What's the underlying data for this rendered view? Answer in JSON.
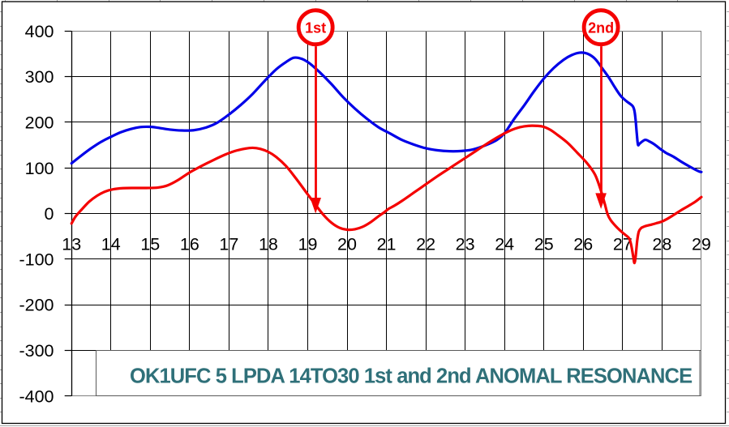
{
  "chart_data": {
    "type": "line",
    "title": "OK1UFC 5 LPDA 14TO30 1st and 2nd ANOMAL RESONANCE",
    "title_color": "#2f7079",
    "xlabel": "",
    "ylabel": "",
    "xlim": [
      13,
      29
    ],
    "ylim": [
      -400,
      400
    ],
    "xticks": [
      13,
      14,
      15,
      16,
      17,
      18,
      19,
      20,
      21,
      22,
      23,
      24,
      25,
      26,
      27,
      28,
      29
    ],
    "yticks": [
      400,
      300,
      200,
      100,
      0,
      -100,
      -200,
      -300,
      -400
    ],
    "grid": true,
    "legend": "none",
    "axis_color": "#000000",
    "grid_color": "#000000",
    "plot_border_color": "#808080",
    "series": [
      {
        "name": "blue",
        "color": "#0000e8",
        "points": [
          [
            13.0,
            110
          ],
          [
            13.25,
            127
          ],
          [
            13.5,
            143
          ],
          [
            13.75,
            157
          ],
          [
            14.0,
            168
          ],
          [
            14.25,
            178
          ],
          [
            14.5,
            185
          ],
          [
            14.75,
            189.5
          ],
          [
            15.0,
            190
          ],
          [
            15.2,
            188
          ],
          [
            15.5,
            184
          ],
          [
            15.8,
            182
          ],
          [
            16.1,
            182.5
          ],
          [
            16.4,
            188
          ],
          [
            16.7,
            199
          ],
          [
            17.0,
            217
          ],
          [
            17.3,
            238
          ],
          [
            17.6,
            262
          ],
          [
            17.9,
            290
          ],
          [
            18.2,
            316
          ],
          [
            18.45,
            332
          ],
          [
            18.65,
            341.5
          ],
          [
            18.85,
            339
          ],
          [
            19.05,
            329
          ],
          [
            19.3,
            310
          ],
          [
            19.6,
            284
          ],
          [
            19.9,
            255
          ],
          [
            20.2,
            230
          ],
          [
            20.5,
            208
          ],
          [
            20.8,
            189
          ],
          [
            21.1,
            175
          ],
          [
            21.4,
            161
          ],
          [
            21.7,
            151
          ],
          [
            22.0,
            143
          ],
          [
            22.3,
            138.5
          ],
          [
            22.6,
            136.5
          ],
          [
            22.9,
            137
          ],
          [
            23.2,
            140.5
          ],
          [
            23.5,
            149
          ],
          [
            23.8,
            161
          ],
          [
            24.0,
            176
          ],
          [
            24.25,
            208
          ],
          [
            24.5,
            237
          ],
          [
            24.75,
            268
          ],
          [
            25.0,
            296
          ],
          [
            25.25,
            319
          ],
          [
            25.5,
            337
          ],
          [
            25.7,
            347
          ],
          [
            25.9,
            352.5
          ],
          [
            26.1,
            350.5
          ],
          [
            26.3,
            339
          ],
          [
            26.5,
            316
          ],
          [
            26.65,
            298
          ],
          [
            26.8,
            277
          ],
          [
            26.95,
            258
          ],
          [
            27.1,
            246
          ],
          [
            27.25,
            236
          ],
          [
            27.3,
            225
          ],
          [
            27.33,
            205
          ],
          [
            27.36,
            175
          ],
          [
            27.39,
            151
          ],
          [
            27.43,
            153
          ],
          [
            27.5,
            158
          ],
          [
            27.58,
            161.5
          ],
          [
            27.68,
            158
          ],
          [
            27.8,
            152
          ],
          [
            27.95,
            142
          ],
          [
            28.1,
            133
          ],
          [
            28.3,
            124
          ],
          [
            28.5,
            113
          ],
          [
            28.7,
            103
          ],
          [
            28.85,
            96
          ],
          [
            28.95,
            92
          ],
          [
            29.0,
            91
          ]
        ]
      },
      {
        "name": "red",
        "color": "#f40000",
        "points": [
          [
            13.0,
            -22
          ],
          [
            13.1,
            -7
          ],
          [
            13.25,
            8
          ],
          [
            13.45,
            26
          ],
          [
            13.65,
            39
          ],
          [
            13.85,
            48
          ],
          [
            14.05,
            53
          ],
          [
            14.3,
            55.5
          ],
          [
            14.6,
            56
          ],
          [
            14.9,
            56
          ],
          [
            15.2,
            57
          ],
          [
            15.45,
            62
          ],
          [
            15.7,
            73
          ],
          [
            16.0,
            90
          ],
          [
            16.3,
            104
          ],
          [
            16.6,
            117
          ],
          [
            16.9,
            129
          ],
          [
            17.15,
            137
          ],
          [
            17.4,
            142
          ],
          [
            17.6,
            144
          ],
          [
            17.8,
            141.5
          ],
          [
            18.0,
            135
          ],
          [
            18.2,
            124
          ],
          [
            18.45,
            104
          ],
          [
            18.7,
            77
          ],
          [
            19.0,
            42
          ],
          [
            19.2,
            19
          ],
          [
            19.4,
            -3
          ],
          [
            19.6,
            -20
          ],
          [
            19.8,
            -31
          ],
          [
            20.0,
            -35.5
          ],
          [
            20.2,
            -34.5
          ],
          [
            20.4,
            -29
          ],
          [
            20.6,
            -19
          ],
          [
            20.8,
            -6
          ],
          [
            20.95,
            3
          ],
          [
            21.05,
            10
          ],
          [
            21.2,
            17
          ],
          [
            21.4,
            28
          ],
          [
            21.7,
            46
          ],
          [
            22.0,
            64
          ],
          [
            22.3,
            82
          ],
          [
            22.6,
            99
          ],
          [
            22.9,
            116
          ],
          [
            23.2,
            133
          ],
          [
            23.5,
            150
          ],
          [
            23.8,
            166
          ],
          [
            24.05,
            178
          ],
          [
            24.3,
            187
          ],
          [
            24.5,
            191
          ],
          [
            24.7,
            192.5
          ],
          [
            24.95,
            191
          ],
          [
            25.15,
            184
          ],
          [
            25.35,
            172
          ],
          [
            25.6,
            155
          ],
          [
            25.85,
            133
          ],
          [
            26.1,
            110
          ],
          [
            26.3,
            85
          ],
          [
            26.45,
            50
          ],
          [
            26.55,
            20
          ],
          [
            26.62,
            -2
          ],
          [
            26.7,
            -15
          ],
          [
            26.85,
            -30
          ],
          [
            27.0,
            -42
          ],
          [
            27.1,
            -49
          ],
          [
            27.17,
            -55
          ],
          [
            27.22,
            -70
          ],
          [
            27.27,
            -95
          ],
          [
            27.3,
            -108.5
          ],
          [
            27.33,
            -95
          ],
          [
            27.37,
            -60
          ],
          [
            27.41,
            -40
          ],
          [
            27.47,
            -32
          ],
          [
            27.55,
            -28.5
          ],
          [
            27.7,
            -25
          ],
          [
            27.85,
            -21.5
          ],
          [
            28.0,
            -17.5
          ],
          [
            28.15,
            -11
          ],
          [
            28.3,
            -3
          ],
          [
            28.5,
            8
          ],
          [
            28.7,
            18
          ],
          [
            28.85,
            26
          ],
          [
            29.0,
            36
          ]
        ]
      }
    ],
    "annotations": [
      {
        "label": "1st",
        "x": 19.2,
        "arrow_tip_value": 0,
        "color": "#f40000"
      },
      {
        "label": "2nd",
        "x": 26.45,
        "arrow_tip_value": 10,
        "color": "#f40000"
      }
    ]
  }
}
